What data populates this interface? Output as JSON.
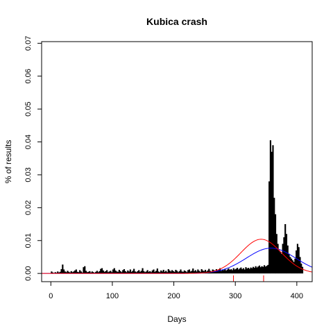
{
  "chart_data": {
    "type": "histogram",
    "title": "Kubica crash",
    "xlabel": "Days",
    "ylabel": "% of results",
    "xlim": [
      -15,
      425
    ],
    "ylim": [
      -0.0025,
      0.0705
    ],
    "x_ticks": [
      0,
      100,
      200,
      300,
      400
    ],
    "y_ticks": [
      0.0,
      0.01,
      0.02,
      0.03,
      0.04,
      0.05,
      0.06,
      0.07
    ],
    "y_tick_labels": [
      "0.00",
      "0.01",
      "0.02",
      "0.03",
      "0.04",
      "0.05",
      "0.06",
      "0.07"
    ],
    "bar_color": "#000000",
    "histogram": {
      "x_start": 0,
      "bin_width": 2,
      "values": [
        0.0006,
        0.0003,
        0.0001,
        0.0004,
        0.0002,
        0.0006,
        0.0003,
        0.0005,
        0.0013,
        0.0027,
        0.0012,
        0.0006,
        0.0004,
        0.0008,
        0.0005,
        0.0003,
        0.0007,
        0.0004,
        0.0006,
        0.0009,
        0.0012,
        0.0005,
        0.0004,
        0.001,
        0.0006,
        0.0003,
        0.0019,
        0.0022,
        0.0008,
        0.0004,
        0.0005,
        0.0007,
        0.0003,
        0.0006,
        0.0004,
        0.0002,
        0.0005,
        0.0008,
        0.0004,
        0.0007,
        0.0014,
        0.0016,
        0.0009,
        0.0005,
        0.0007,
        0.001,
        0.0004,
        0.0006,
        0.0008,
        0.0004,
        0.0012,
        0.0016,
        0.0009,
        0.0006,
        0.0005,
        0.0011,
        0.0007,
        0.0004,
        0.001,
        0.0013,
        0.0007,
        0.0004,
        0.0009,
        0.0006,
        0.0012,
        0.0005,
        0.0008,
        0.0014,
        0.0006,
        0.0004,
        0.0007,
        0.001,
        0.0005,
        0.0008,
        0.0016,
        0.0007,
        0.0004,
        0.0006,
        0.001,
        0.0005,
        0.0007,
        0.0004,
        0.0009,
        0.0012,
        0.0005,
        0.0008,
        0.0015,
        0.0006,
        0.0004,
        0.0009,
        0.0006,
        0.0011,
        0.0005,
        0.0008,
        0.0004,
        0.0013,
        0.0009,
        0.0006,
        0.001,
        0.0007,
        0.0005,
        0.0011,
        0.0008,
        0.0004,
        0.0007,
        0.0012,
        0.0006,
        0.0005,
        0.0009,
        0.0007,
        0.0004,
        0.001,
        0.0012,
        0.0006,
        0.0008,
        0.0015,
        0.0007,
        0.001,
        0.0006,
        0.0012,
        0.0008,
        0.0005,
        0.0013,
        0.0009,
        0.0007,
        0.0011,
        0.0006,
        0.0009,
        0.0014,
        0.0008,
        0.0006,
        0.0012,
        0.001,
        0.0007,
        0.0013,
        0.0009,
        0.0011,
        0.0016,
        0.0008,
        0.0012,
        0.001,
        0.0014,
        0.0009,
        0.0012,
        0.0015,
        0.0011,
        0.0013,
        0.001,
        0.0016,
        0.0012,
        0.0014,
        0.0017,
        0.0012,
        0.0015,
        0.0018,
        0.0013,
        0.0016,
        0.0012,
        0.0019,
        0.0015,
        0.0017,
        0.0014,
        0.0018,
        0.0016,
        0.002,
        0.0017,
        0.0022,
        0.0018,
        0.0021,
        0.0024,
        0.0019,
        0.0022,
        0.002,
        0.0025,
        0.0021,
        0.0023,
        0.0026,
        0.028,
        0.0405,
        0.037,
        0.039,
        0.023,
        0.018,
        0.012,
        0.009,
        0.007,
        0.0065,
        0.006,
        0.009,
        0.011,
        0.015,
        0.012,
        0.0085,
        0.006,
        0.005,
        0.0045,
        0.004,
        0.0035,
        0.0045,
        0.007,
        0.009,
        0.008,
        0.005,
        0.003,
        0.002
      ]
    },
    "series": [
      {
        "color": "#0000ff",
        "curve": "normal",
        "mean": 358,
        "sd": 40,
        "peak": 0.0077
      },
      {
        "color": "#ff0000",
        "curve": "normal",
        "mean": 342,
        "sd": 33,
        "peak": 0.0104
      }
    ],
    "rug": [
      {
        "x": 297,
        "color": "#ff0000"
      },
      {
        "x": 346,
        "color": "#ff0000"
      }
    ]
  }
}
